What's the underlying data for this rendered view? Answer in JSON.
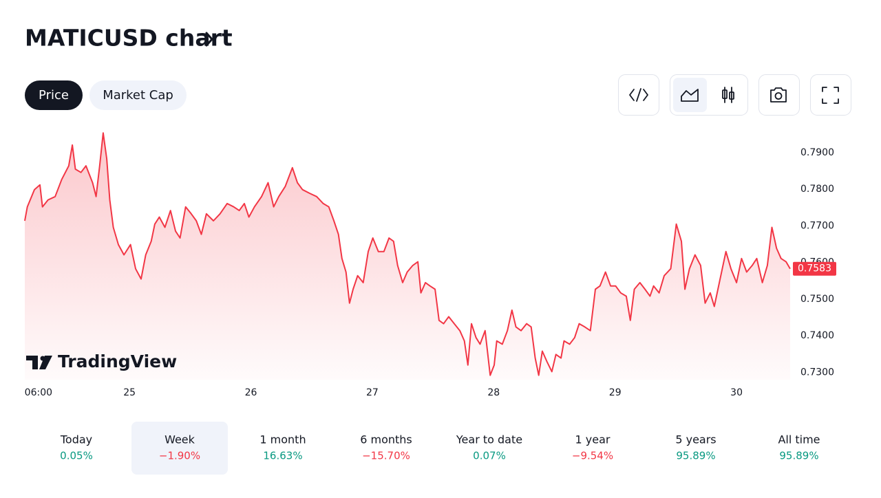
{
  "header": {
    "title": "MATICUSD chart"
  },
  "tabs": {
    "items": [
      "Price",
      "Market Cap"
    ],
    "selected": 0
  },
  "logo": {
    "text": "TradingView"
  },
  "chart_data": {
    "type": "line",
    "color": "#f23645",
    "x": [
      -2.7,
      -2.2,
      -0.8,
      0.3,
      0.8,
      1.9,
      3.3,
      4.6,
      6.0,
      6.7,
      7.3,
      8.4,
      9.4,
      10.7,
      11.4,
      12.1,
      12.8,
      13.5,
      14.1,
      14.8,
      15.8,
      16.9,
      18.2,
      19.2,
      20.3,
      21.2,
      22.3,
      23.0,
      23.9,
      25.0,
      26.1,
      27.1,
      28.0,
      29.1,
      30.2,
      31.2,
      32.2,
      33.2,
      34.6,
      35.9,
      37.3,
      38.6,
      39.7,
      40.7,
      41.6,
      42.7,
      44.1,
      45.4,
      46.5,
      47.5,
      48.8,
      50.2,
      51.2,
      52.2,
      53.6,
      55.0,
      56.3,
      57.4,
      58.4,
      59.3,
      60.0,
      60.8,
      61.5,
      62.2,
      63.1,
      64.2,
      65.2,
      66.1,
      67.2,
      68.3,
      69.3,
      70.2,
      71.0,
      72.0,
      72.9,
      74.0,
      75.0,
      75.6,
      76.5,
      77.4,
      78.4,
      79.2,
      80.1,
      81.1,
      82.2,
      83.3,
      84.2,
      84.9,
      85.6,
      86.5,
      87.3,
      88.3,
      89.3,
      90.1,
      90.6,
      91.7,
      92.7,
      93.6,
      94.4,
      95.4,
      96.5,
      97.4,
      98.2,
      98.9,
      99.6,
      100.5,
      101.5,
      102.3,
      103.3,
      103.9,
      105.0,
      106.0,
      106.9,
      108.0,
      109.1,
      110.1,
      111.0,
      112.1,
      113.1,
      114.1,
      115.1,
      116.2,
      117.0,
      117.8,
      118.9,
      119.9,
      120.9,
      121.6,
      122.7,
      123.7,
      125.0,
      126.1,
      127.1,
      127.8,
      128.7,
      129.8,
      130.9,
      131.8,
      132.8,
      133.6,
      134.6,
      135.9,
      136.9,
      138.0,
      139.0,
      140.0,
      141.1,
      142.0,
      143.1,
      144.1,
      145.0,
      145.9,
      146.8,
      147.8,
      148.6
    ],
    "values": [
      0.7714,
      0.7752,
      0.7799,
      0.7812,
      0.7752,
      0.7771,
      0.778,
      0.7827,
      0.7864,
      0.7921,
      0.7855,
      0.7846,
      0.7864,
      0.7818,
      0.778,
      0.7864,
      0.7954,
      0.7883,
      0.7771,
      0.7696,
      0.7649,
      0.7621,
      0.7649,
      0.7583,
      0.7555,
      0.7621,
      0.7658,
      0.7705,
      0.7724,
      0.7696,
      0.7742,
      0.7686,
      0.7667,
      0.7752,
      0.7733,
      0.7714,
      0.7677,
      0.7733,
      0.7714,
      0.7733,
      0.7761,
      0.7752,
      0.7742,
      0.7761,
      0.7724,
      0.7752,
      0.778,
      0.7818,
      0.7752,
      0.778,
      0.7808,
      0.7859,
      0.7818,
      0.7799,
      0.7789,
      0.778,
      0.7761,
      0.7752,
      0.7714,
      0.7677,
      0.7611,
      0.7574,
      0.7489,
      0.7527,
      0.7564,
      0.7545,
      0.763,
      0.7667,
      0.763,
      0.763,
      0.7667,
      0.7658,
      0.7592,
      0.7545,
      0.7574,
      0.7592,
      0.7602,
      0.7517,
      0.7545,
      0.7536,
      0.7527,
      0.7442,
      0.7433,
      0.7452,
      0.7433,
      0.7414,
      0.7386,
      0.732,
      0.7433,
      0.7395,
      0.7377,
      0.7414,
      0.7292,
      0.732,
      0.7386,
      0.7377,
      0.7414,
      0.747,
      0.7424,
      0.7414,
      0.7433,
      0.7424,
      0.7339,
      0.7292,
      0.7358,
      0.733,
      0.7302,
      0.7349,
      0.7339,
      0.7386,
      0.7377,
      0.7395,
      0.7433,
      0.7424,
      0.7414,
      0.7527,
      0.7536,
      0.7574,
      0.7536,
      0.7536,
      0.7517,
      0.7508,
      0.7442,
      0.7527,
      0.7545,
      0.7527,
      0.7508,
      0.7536,
      0.7517,
      0.7564,
      0.7583,
      0.7705,
      0.7658,
      0.7527,
      0.7583,
      0.7621,
      0.7592,
      0.7489,
      0.7517,
      0.748,
      0.7545,
      0.763,
      0.7583,
      0.7545,
      0.7611,
      0.7574,
      0.7592,
      0.7611,
      0.7545,
      0.7592,
      0.7696,
      0.7639,
      0.7611,
      0.7602,
      0.7583
    ],
    "xlim": [
      -2.7,
      148.6
    ],
    "xticks": [
      {
        "value": 0,
        "label": "06:00"
      },
      {
        "value": 18,
        "label": "25"
      },
      {
        "value": 42,
        "label": "26"
      },
      {
        "value": 66,
        "label": "27"
      },
      {
        "value": 90,
        "label": "28"
      },
      {
        "value": 114,
        "label": "29"
      },
      {
        "value": 138,
        "label": "30"
      }
    ],
    "ylim": [
      0.728,
      0.796
    ],
    "yticks": [
      {
        "value": 0.73,
        "label": "0.7300"
      },
      {
        "value": 0.74,
        "label": "0.7400"
      },
      {
        "value": 0.75,
        "label": "0.7500"
      },
      {
        "value": 0.76,
        "label": "0.7600"
      },
      {
        "value": 0.77,
        "label": "0.7700"
      },
      {
        "value": 0.78,
        "label": "0.7800"
      },
      {
        "value": 0.79,
        "label": "0.7900"
      }
    ],
    "grid": false
  },
  "periods": {
    "selected": 1,
    "items": [
      {
        "label": "Today",
        "change": "0.05%"
      },
      {
        "label": "Week",
        "change": "−1.90%"
      },
      {
        "label": "1 month",
        "change": "16.63%"
      },
      {
        "label": "6 months",
        "change": "−15.70%"
      },
      {
        "label": "Year to date",
        "change": "0.07%"
      },
      {
        "label": "1 year",
        "change": "−9.54%"
      },
      {
        "label": "5 years",
        "change": "95.89%"
      },
      {
        "label": "All time",
        "change": "95.89%"
      }
    ]
  }
}
